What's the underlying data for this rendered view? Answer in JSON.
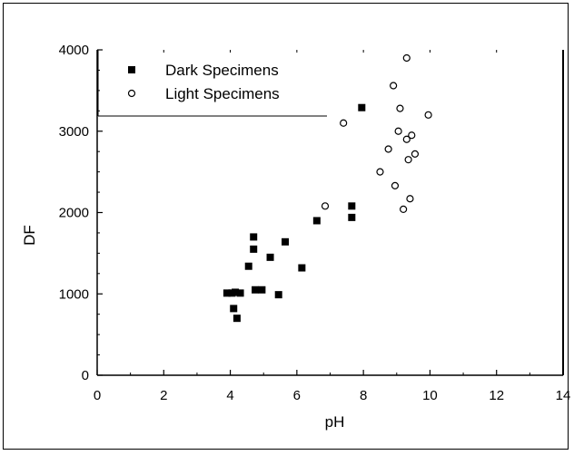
{
  "chart_data": {
    "type": "scatter",
    "title": "",
    "xlabel": "pH",
    "ylabel": "DF",
    "xlim": [
      0,
      14
    ],
    "ylim": [
      0,
      4000
    ],
    "xticks": [
      0,
      2,
      4,
      6,
      8,
      10,
      12,
      14
    ],
    "xtick_labels": [
      "0",
      "2",
      "4",
      "6",
      "8",
      "10",
      "12",
      "14"
    ],
    "yticks": [
      0,
      1000,
      2000,
      3000,
      4000
    ],
    "ytick_labels": [
      "0",
      "1000",
      "2000",
      "3000",
      "4000"
    ],
    "grid": false,
    "legend_position": "top-left",
    "series": [
      {
        "name": "Dark Specimens",
        "marker": "filled-square",
        "color": "#000000",
        "points": [
          [
            3.9,
            1010
          ],
          [
            4.05,
            1010
          ],
          [
            4.1,
            820
          ],
          [
            4.15,
            1020
          ],
          [
            4.2,
            700
          ],
          [
            4.3,
            1010
          ],
          [
            4.55,
            1340
          ],
          [
            4.7,
            1550
          ],
          [
            4.7,
            1700
          ],
          [
            4.75,
            1050
          ],
          [
            4.95,
            1050
          ],
          [
            5.2,
            1450
          ],
          [
            5.45,
            990
          ],
          [
            5.65,
            1640
          ],
          [
            6.15,
            1320
          ],
          [
            6.6,
            1900
          ],
          [
            7.65,
            2080
          ],
          [
            7.65,
            1940
          ],
          [
            7.95,
            3290
          ]
        ]
      },
      {
        "name": "Light Specimens",
        "marker": "open-circle",
        "color": "#000000",
        "points": [
          [
            6.85,
            2080
          ],
          [
            7.4,
            3100
          ],
          [
            8.5,
            2500
          ],
          [
            8.75,
            2780
          ],
          [
            8.9,
            3560
          ],
          [
            8.95,
            2330
          ],
          [
            9.05,
            3000
          ],
          [
            9.1,
            3280
          ],
          [
            9.2,
            2040
          ],
          [
            9.3,
            2900
          ],
          [
            9.35,
            2650
          ],
          [
            9.4,
            2170
          ],
          [
            9.45,
            2950
          ],
          [
            9.55,
            2720
          ],
          [
            9.95,
            3200
          ],
          [
            9.3,
            3900
          ]
        ]
      }
    ]
  }
}
